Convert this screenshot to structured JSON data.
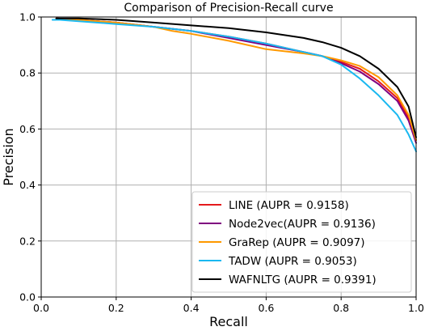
{
  "chart_data": {
    "type": "line",
    "title": "Comparison of Precision-Recall curve",
    "xlabel": "Recall",
    "ylabel": "Precision",
    "xlim": [
      0.0,
      1.0
    ],
    "ylim": [
      0.0,
      1.0
    ],
    "xticks": [
      "0.0",
      "0.2",
      "0.4",
      "0.6",
      "0.8",
      "1.0"
    ],
    "yticks": [
      "0.0",
      "0.2",
      "0.4",
      "0.6",
      "0.8",
      "1.0"
    ],
    "grid": true,
    "legend_position": "lower-right",
    "series": [
      {
        "name": "LINE (AUPR = 0.9158)",
        "color": "#e41a1c",
        "x": [
          0.04,
          0.1,
          0.2,
          0.3,
          0.4,
          0.5,
          0.6,
          0.7,
          0.75,
          0.8,
          0.85,
          0.9,
          0.95,
          0.98,
          1.0
        ],
        "y": [
          0.995,
          0.99,
          0.98,
          0.965,
          0.95,
          0.93,
          0.905,
          0.875,
          0.86,
          0.84,
          0.815,
          0.77,
          0.71,
          0.64,
          0.56
        ]
      },
      {
        "name": "Node2vec(AUPR = 0.9136)",
        "color": "#800080",
        "x": [
          0.04,
          0.1,
          0.2,
          0.3,
          0.4,
          0.5,
          0.6,
          0.7,
          0.75,
          0.8,
          0.85,
          0.9,
          0.95,
          0.98,
          1.0
        ],
        "y": [
          0.995,
          0.99,
          0.98,
          0.965,
          0.95,
          0.925,
          0.9,
          0.875,
          0.86,
          0.835,
          0.805,
          0.76,
          0.7,
          0.63,
          0.55
        ]
      },
      {
        "name": "GraRep (AUPR = 0.9097)",
        "color": "#ff9900",
        "x": [
          0.04,
          0.1,
          0.2,
          0.3,
          0.35,
          0.4,
          0.5,
          0.6,
          0.7,
          0.75,
          0.8,
          0.85,
          0.9,
          0.95,
          0.98,
          1.0
        ],
        "y": [
          0.995,
          0.99,
          0.98,
          0.965,
          0.95,
          0.94,
          0.915,
          0.885,
          0.87,
          0.86,
          0.845,
          0.825,
          0.785,
          0.72,
          0.65,
          0.56
        ]
      },
      {
        "name": "TADW (AUPR = 0.9053)",
        "color": "#1ab8f0",
        "x": [
          0.03,
          0.05,
          0.1,
          0.2,
          0.3,
          0.4,
          0.5,
          0.6,
          0.7,
          0.75,
          0.8,
          0.85,
          0.9,
          0.95,
          0.98,
          1.0
        ],
        "y": [
          0.99,
          0.99,
          0.985,
          0.975,
          0.965,
          0.95,
          0.93,
          0.905,
          0.875,
          0.86,
          0.83,
          0.78,
          0.72,
          0.65,
          0.58,
          0.52
        ]
      },
      {
        "name": "WAFNLTG (AUPR = 0.9391)",
        "color": "#000000",
        "x": [
          0.04,
          0.1,
          0.2,
          0.3,
          0.4,
          0.5,
          0.6,
          0.7,
          0.75,
          0.8,
          0.85,
          0.9,
          0.95,
          0.98,
          1.0
        ],
        "y": [
          0.995,
          0.995,
          0.99,
          0.98,
          0.97,
          0.96,
          0.945,
          0.925,
          0.91,
          0.89,
          0.86,
          0.815,
          0.75,
          0.68,
          0.57
        ]
      }
    ]
  }
}
